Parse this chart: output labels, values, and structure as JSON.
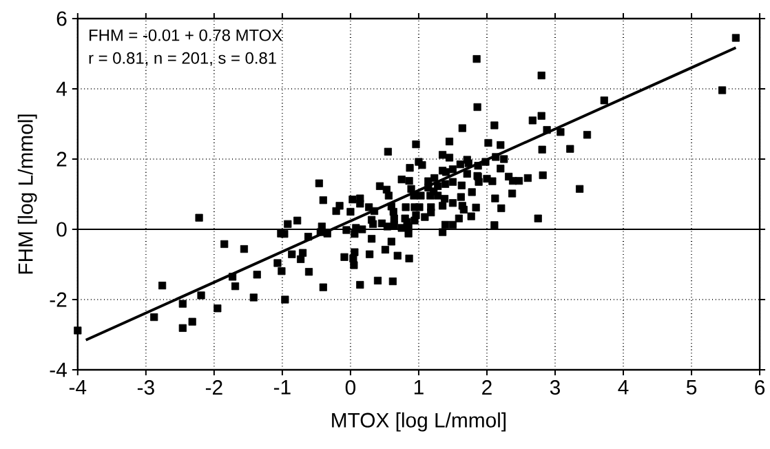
{
  "chart_data": {
    "type": "scatter",
    "xlabel": "MTOX [log L/mmol]",
    "ylabel": "FHM [log L/mmol]",
    "annotations": [
      "FHM = -0.01 + 0.78 MTOX",
      "r = 0.81, n = 201, s = 0.81"
    ],
    "xlim": [
      -4,
      6
    ],
    "ylim": [
      -4,
      6
    ],
    "xticks": [
      -4,
      -3,
      -2,
      -1,
      0,
      1,
      2,
      3,
      4,
      5,
      6
    ],
    "yticks": [
      -4,
      -2,
      0,
      2,
      4,
      6
    ],
    "grid": true,
    "ref_lines": [
      {
        "axis": "y",
        "value": 0,
        "color": "#000000",
        "line_style": "solid"
      }
    ],
    "series": [
      {
        "color": "#000000",
        "marker": "square",
        "x": [
          -4.0,
          -2.88,
          -2.76,
          -2.46,
          -2.46,
          -2.32,
          -2.22,
          -2.19,
          -1.95,
          -1.85,
          -1.73,
          -1.69,
          -1.56,
          -1.42,
          -1.37,
          -1.07,
          -1.02,
          -1.01,
          -0.97,
          -0.96,
          -0.92,
          -0.86,
          -0.78,
          -0.73,
          -0.7,
          -0.62,
          -0.61,
          -0.46,
          -0.44,
          -0.42,
          -0.4,
          -0.4,
          -0.34,
          -0.21,
          -0.16,
          -0.09,
          -0.06,
          0.0,
          0.03,
          0.04,
          0.05,
          0.06,
          0.06,
          0.08,
          0.14,
          0.14,
          0.14,
          0.17,
          0.27,
          0.28,
          0.31,
          0.31,
          0.33,
          0.35,
          0.4,
          0.43,
          0.46,
          0.51,
          0.53,
          0.54,
          0.55,
          0.56,
          0.6,
          0.6,
          0.62,
          0.63,
          0.64,
          0.64,
          0.69,
          0.75,
          0.75,
          0.8,
          0.81,
          0.83,
          0.85,
          0.85,
          0.86,
          0.86,
          0.87,
          0.89,
          0.93,
          0.94,
          0.94,
          0.96,
          0.96,
          1.0,
          1.01,
          1.03,
          1.05,
          1.09,
          1.14,
          1.14,
          1.17,
          1.18,
          1.18,
          1.22,
          1.23,
          1.28,
          1.28,
          1.35,
          1.35,
          1.35,
          1.35,
          1.38,
          1.39,
          1.39,
          1.4,
          1.45,
          1.45,
          1.5,
          1.5,
          1.5,
          1.5,
          1.59,
          1.61,
          1.62,
          1.63,
          1.64,
          1.64,
          1.66,
          1.71,
          1.71,
          1.73,
          1.77,
          1.78,
          1.84,
          1.85,
          1.86,
          1.86,
          1.87,
          1.87,
          1.88,
          1.98,
          2.0,
          2.02,
          2.08,
          2.11,
          2.11,
          2.12,
          2.13,
          2.2,
          2.2,
          2.21,
          2.25,
          2.32,
          2.37,
          2.38,
          2.47,
          2.6,
          2.67,
          2.75,
          2.8,
          2.8,
          2.81,
          2.82,
          2.88,
          3.08,
          3.22,
          3.36,
          3.47,
          3.72,
          5.45,
          5.65
        ],
        "values": [
          -2.88,
          -2.5,
          -1.6,
          -2.12,
          -2.81,
          -2.63,
          0.33,
          -1.88,
          -2.25,
          -0.42,
          -1.35,
          -1.62,
          -0.56,
          -1.94,
          -1.29,
          -0.96,
          -0.12,
          -1.19,
          -0.13,
          -2.0,
          0.15,
          -0.71,
          0.25,
          -0.85,
          -0.67,
          -0.21,
          -1.21,
          1.31,
          -0.08,
          0.08,
          0.83,
          -1.65,
          -0.12,
          0.52,
          0.67,
          -0.79,
          -0.02,
          0.5,
          0.85,
          -0.83,
          -1.02,
          -0.13,
          -0.65,
          0.04,
          0.88,
          0.73,
          -1.58,
          0.0,
          0.63,
          -0.71,
          0.27,
          -0.27,
          0.15,
          0.52,
          -1.46,
          1.23,
          0.17,
          -0.58,
          1.13,
          0.08,
          2.21,
          0.96,
          0.65,
          -0.35,
          -1.48,
          0.5,
          0.31,
          0.12,
          -0.75,
          1.42,
          0.04,
          0.31,
          0.63,
          0.21,
          0.08,
          -0.12,
          1.38,
          -0.83,
          1.75,
          1.15,
          0.96,
          0.63,
          0.25,
          2.42,
          0.4,
          1.92,
          0.63,
          0.96,
          1.83,
          0.35,
          1.37,
          1.19,
          0.96,
          0.63,
          0.48,
          1.08,
          1.46,
          1.23,
          0.96,
          2.12,
          1.67,
          0.67,
          -0.08,
          0.87,
          1.29,
          0.13,
          1.63,
          2.5,
          2.04,
          1.71,
          1.35,
          0.75,
          0.13,
          0.31,
          1.85,
          0.92,
          1.25,
          2.88,
          0.67,
          0.56,
          1.98,
          1.58,
          1.88,
          0.37,
          1.06,
          0.62,
          4.85,
          3.48,
          1.52,
          1.81,
          1.5,
          1.35,
          1.92,
          1.44,
          2.46,
          1.37,
          2.96,
          0.12,
          0.88,
          2.06,
          2.4,
          1.73,
          0.6,
          2.0,
          1.5,
          1.02,
          1.38,
          1.38,
          1.46,
          3.1,
          0.31,
          4.38,
          3.23,
          2.27,
          1.54,
          2.83,
          2.77,
          2.29,
          1.15,
          2.69,
          3.67,
          3.96,
          5.45
        ]
      },
      {
        "type": "line",
        "color": "#000000",
        "marker": "none",
        "line_style": "solid",
        "x": [
          -3.88,
          5.65
        ],
        "values": [
          -3.15,
          5.17
        ]
      }
    ]
  }
}
